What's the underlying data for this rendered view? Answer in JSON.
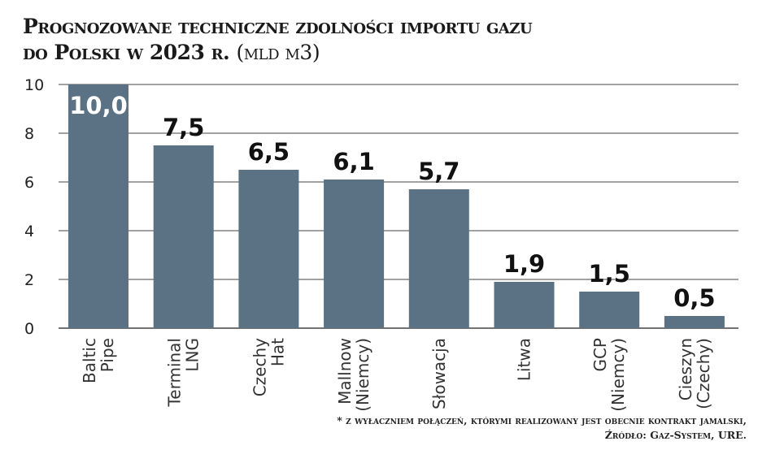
{
  "chart_data": {
    "type": "bar",
    "title_line1": "Prognozowane techniczne zdolności importu gazu",
    "title_line2": "do Polski w 2023 r.",
    "unit": "(mld m3)",
    "categories": [
      [
        "Baltic",
        "Pipe"
      ],
      [
        "Terminal",
        "LNG"
      ],
      [
        "Czechy",
        "Hat"
      ],
      [
        "Mallnow",
        "(Niemcy)"
      ],
      [
        "Słowacja"
      ],
      [
        "Litwa"
      ],
      [
        "GCP",
        "(Niemcy)"
      ],
      [
        "Cieszyn",
        "(Czechy)"
      ]
    ],
    "values": [
      10.0,
      7.5,
      6.5,
      6.1,
      5.7,
      1.9,
      1.5,
      0.5
    ],
    "data_labels": [
      "10,0",
      "7,5",
      "6,5",
      "6,1",
      "5,7",
      "1,9",
      "1,5",
      "0,5"
    ],
    "yticks": [
      0,
      2,
      4,
      6,
      8,
      10
    ],
    "ylim": [
      0,
      10
    ],
    "grid": true,
    "bar_color": "#5b7184",
    "footnote_line1": "* z wyłaczniem połączeń, którymi realizowany jest obecnie kontrakt jamalski,",
    "footnote_line2": "Źródło: Gaz-System, URE."
  }
}
